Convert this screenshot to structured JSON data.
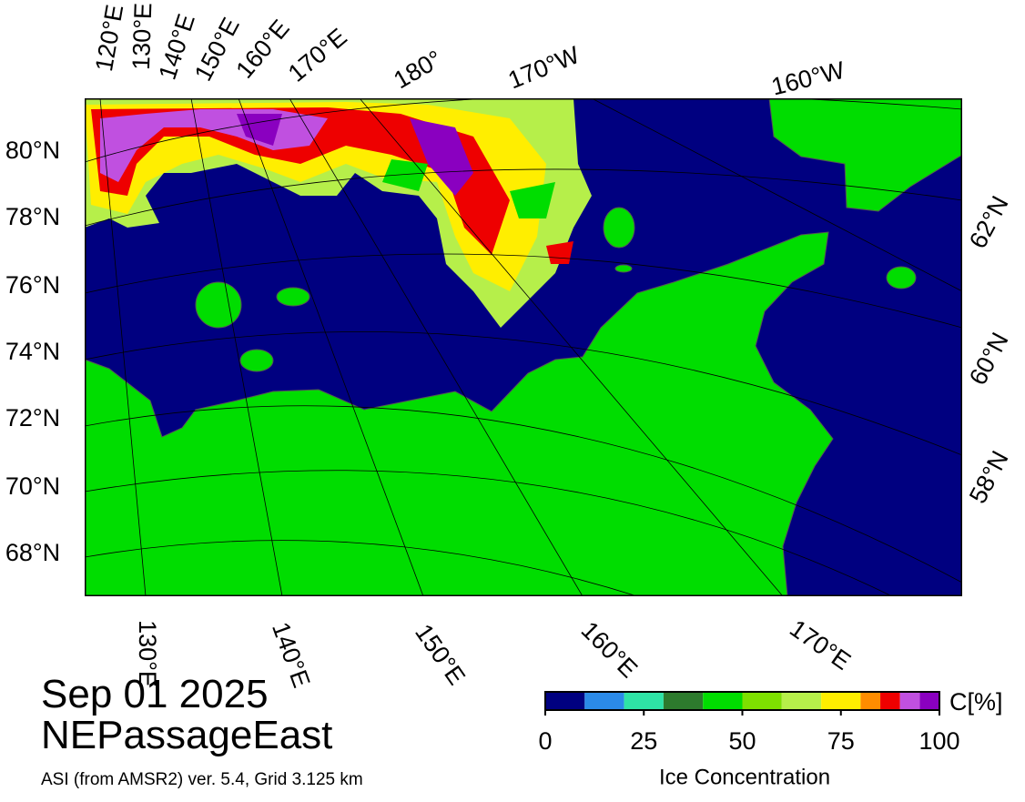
{
  "map": {
    "date": "Sep 01 2025",
    "region": "NEPassageEast",
    "source": "ASI (from AMSR2) ver. 5.4,  Grid 3.125 km",
    "top_labels": [
      "120°E",
      "130°E",
      "140°E",
      "150°E",
      "160°E",
      "170°E",
      "180°",
      "170°W",
      "160°W"
    ],
    "left_labels": [
      "80°N",
      "78°N",
      "76°N",
      "74°N",
      "72°N",
      "70°N",
      "68°N"
    ],
    "right_labels": [
      "62°N",
      "60°N",
      "58°N"
    ],
    "bottom_labels": [
      "130°E",
      "140°E",
      "150°E",
      "160°E",
      "170°E"
    ]
  },
  "colorbar": {
    "label": "Ice Concentration",
    "unit": "C[%]",
    "range": [
      0,
      100
    ],
    "ticks": [
      0,
      25,
      50,
      75,
      100
    ],
    "bounds": [
      0,
      10,
      20,
      30,
      40,
      50,
      60,
      70,
      80,
      85,
      90,
      95,
      100
    ],
    "colors": [
      "#000080",
      "#2b8ae8",
      "#2ee3a6",
      "#2d7a2d",
      "#00dd00",
      "#7ee000",
      "#b6ef4a",
      "#ffee00",
      "#ff8c00",
      "#ee0000",
      "#c050e0",
      "#8a00c0"
    ]
  }
}
